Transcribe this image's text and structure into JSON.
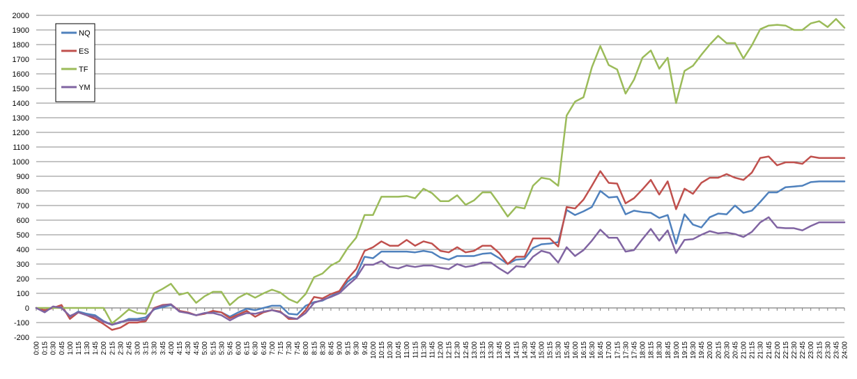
{
  "chart_data": {
    "type": "line",
    "title": "",
    "xlabel": "",
    "ylabel": "",
    "ylim": [
      -200,
      2000
    ],
    "ytick_step": 100,
    "grid": true,
    "legend_position": "top-left",
    "x_start_minutes": 0,
    "x_step_minutes": 15,
    "x": [
      "0:00",
      "0:15",
      "0:30",
      "0:45",
      "1:00",
      "1:15",
      "1:30",
      "1:45",
      "2:00",
      "2:15",
      "2:30",
      "2:45",
      "3:00",
      "3:15",
      "3:30",
      "3:45",
      "4:00",
      "4:15",
      "4:30",
      "4:45",
      "5:00",
      "5:15",
      "5:30",
      "5:45",
      "6:00",
      "6:15",
      "6:30",
      "6:45",
      "7:00",
      "7:15",
      "7:30",
      "7:45",
      "8:00",
      "8:15",
      "8:30",
      "8:45",
      "9:00",
      "9:15",
      "9:30",
      "9:45",
      "10:00",
      "10:15",
      "10:30",
      "10:45",
      "11:00",
      "11:15",
      "11:30",
      "11:45",
      "12:00",
      "12:15",
      "12:30",
      "12:45",
      "13:00",
      "13:15",
      "13:30",
      "13:45",
      "14:00",
      "14:15",
      "14:30",
      "14:45",
      "15:00",
      "15:15",
      "15:30",
      "15:45",
      "16:00",
      "16:15",
      "16:30",
      "16:45",
      "17:00",
      "17:15",
      "17:30",
      "17:45",
      "18:00",
      "18:15",
      "18:30",
      "18:45",
      "19:00",
      "19:15",
      "19:30",
      "19:45",
      "20:00",
      "20:15",
      "20:30",
      "20:45",
      "21:00",
      "21:15",
      "21:30",
      "21:45",
      "22:00",
      "22:15",
      "22:30",
      "22:45",
      "23:00",
      "23:15",
      "23:30",
      "23:45",
      "24:00"
    ],
    "series": [
      {
        "name": "NQ",
        "color": "#4F81BD",
        "values": [
          0,
          -25,
          5,
          5,
          -60,
          -25,
          -40,
          -50,
          -90,
          -115,
          -100,
          -75,
          -75,
          -65,
          -10,
          5,
          20,
          -20,
          -35,
          -50,
          -35,
          -25,
          -30,
          -60,
          -30,
          -5,
          -15,
          0,
          15,
          15,
          -40,
          -45,
          15,
          40,
          50,
          80,
          110,
          180,
          220,
          350,
          340,
          385,
          385,
          385,
          385,
          380,
          390,
          380,
          345,
          330,
          355,
          355,
          355,
          370,
          375,
          340,
          300,
          330,
          335,
          410,
          435,
          440,
          450,
          670,
          635,
          660,
          690,
          800,
          755,
          760,
          640,
          665,
          655,
          650,
          615,
          635,
          440,
          640,
          570,
          550,
          620,
          645,
          640,
          700,
          650,
          665,
          725,
          790,
          790,
          825,
          830,
          835,
          860,
          865,
          865,
          865,
          865
        ]
      },
      {
        "name": "ES",
        "color": "#C0504D",
        "values": [
          0,
          -15,
          0,
          20,
          -75,
          -30,
          -50,
          -75,
          -110,
          -150,
          -135,
          -100,
          -100,
          -90,
          0,
          20,
          25,
          -20,
          -30,
          -50,
          -40,
          -20,
          -30,
          -70,
          -45,
          -20,
          -60,
          -30,
          -15,
          -25,
          -75,
          -75,
          -15,
          75,
          65,
          95,
          115,
          200,
          265,
          390,
          415,
          455,
          425,
          425,
          465,
          425,
          455,
          440,
          390,
          380,
          415,
          380,
          390,
          425,
          425,
          375,
          300,
          350,
          350,
          475,
          475,
          475,
          420,
          690,
          680,
          740,
          835,
          935,
          855,
          850,
          715,
          750,
          810,
          875,
          775,
          865,
          675,
          815,
          780,
          855,
          890,
          890,
          915,
          890,
          875,
          925,
          1025,
          1035,
          975,
          995,
          995,
          985,
          1035,
          1025,
          1025,
          1025,
          1025
        ]
      },
      {
        "name": "TF",
        "color": "#9BBB59",
        "values": [
          0,
          0,
          0,
          0,
          0,
          0,
          0,
          0,
          0,
          -105,
          -60,
          -10,
          -35,
          -40,
          100,
          130,
          165,
          90,
          105,
          35,
          80,
          110,
          110,
          20,
          70,
          100,
          70,
          100,
          125,
          105,
          60,
          35,
          95,
          210,
          235,
          290,
          320,
          410,
          480,
          635,
          635,
          760,
          760,
          760,
          765,
          750,
          815,
          785,
          730,
          730,
          770,
          705,
          735,
          790,
          790,
          710,
          625,
          690,
          680,
          835,
          890,
          880,
          835,
          1315,
          1410,
          1440,
          1645,
          1790,
          1660,
          1630,
          1465,
          1560,
          1710,
          1760,
          1635,
          1710,
          1400,
          1620,
          1655,
          1730,
          1800,
          1860,
          1810,
          1810,
          1705,
          1795,
          1905,
          1930,
          1935,
          1930,
          1900,
          1900,
          1945,
          1960,
          1920,
          1975,
          1915
        ]
      },
      {
        "name": "YM",
        "color": "#8064A2",
        "values": [
          0,
          -30,
          10,
          0,
          -55,
          -30,
          -50,
          -60,
          -95,
          -115,
          -95,
          -85,
          -85,
          -80,
          -5,
          15,
          25,
          -25,
          -35,
          -50,
          -35,
          -35,
          -50,
          -85,
          -55,
          -35,
          -40,
          -25,
          -15,
          -30,
          -65,
          -75,
          -35,
          35,
          55,
          75,
          100,
          155,
          205,
          295,
          295,
          320,
          280,
          270,
          290,
          280,
          290,
          290,
          275,
          265,
          300,
          280,
          290,
          310,
          310,
          270,
          235,
          285,
          280,
          350,
          390,
          375,
          310,
          415,
          355,
          395,
          460,
          535,
          480,
          480,
          385,
          395,
          470,
          540,
          460,
          530,
          375,
          465,
          470,
          500,
          525,
          510,
          515,
          505,
          485,
          520,
          585,
          620,
          550,
          545,
          545,
          530,
          560,
          585,
          585,
          585,
          585
        ]
      }
    ]
  }
}
